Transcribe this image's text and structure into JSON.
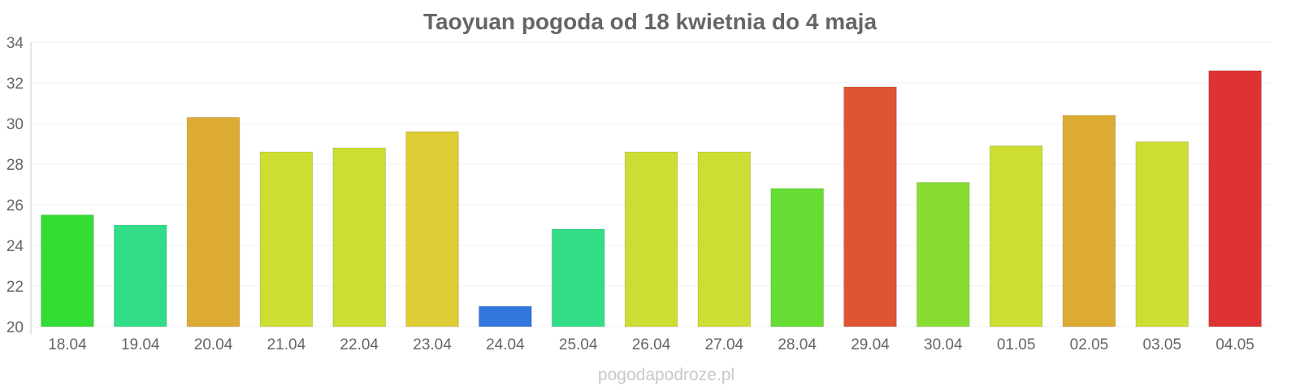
{
  "chart_data": {
    "type": "bar",
    "title": "Taoyuan pogoda od 18 kwietnia do 4 maja",
    "xlabel": "",
    "ylabel": "",
    "categories": [
      "18.04",
      "19.04",
      "20.04",
      "21.04",
      "22.04",
      "23.04",
      "24.04",
      "25.04",
      "26.04",
      "27.04",
      "28.04",
      "29.04",
      "30.04",
      "01.05",
      "02.05",
      "03.05",
      "04.05"
    ],
    "values": [
      25.5,
      25.0,
      30.3,
      28.6,
      28.8,
      29.6,
      21.0,
      24.8,
      28.6,
      28.6,
      26.8,
      31.8,
      27.1,
      28.9,
      30.4,
      29.1,
      32.6
    ],
    "colors": [
      "#33dd33",
      "#33dd88",
      "#ddaa33",
      "#ccdd33",
      "#ccdd33",
      "#ddcc33",
      "#3377dd",
      "#33dd88",
      "#ccdd33",
      "#ccdd33",
      "#66dd33",
      "#dd5533",
      "#88dd33",
      "#ccdd33",
      "#ddaa33",
      "#ccdd33",
      "#dd3333"
    ],
    "ylim": [
      20,
      34
    ],
    "yticks": [
      "20",
      "22",
      "24",
      "26",
      "28",
      "30",
      "32",
      "34"
    ],
    "grid": true,
    "legend": "none"
  },
  "watermark": "pogodapodroze.pl"
}
